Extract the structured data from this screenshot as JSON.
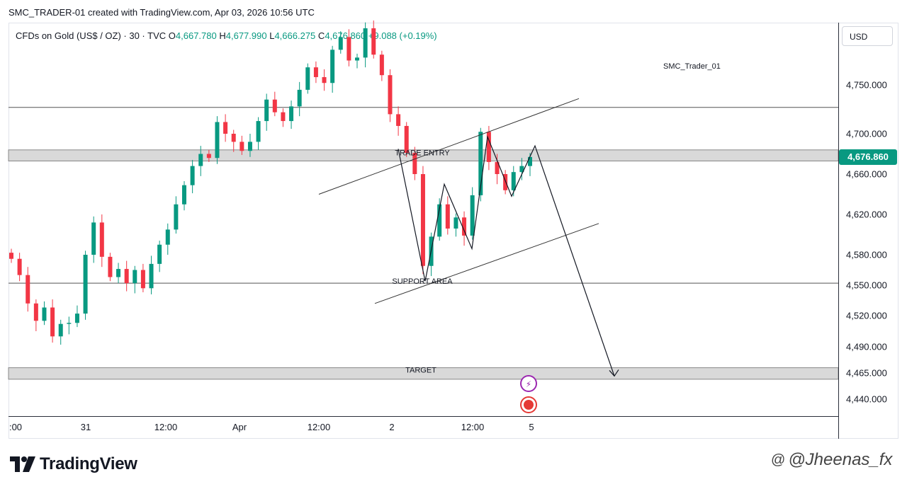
{
  "header": {
    "credit": "SMC_TRADER-01 created with TradingView.com, Apr 03, 2026 10:56 UTC"
  },
  "symbol": {
    "name": "CFDs on Gold (US$ / OZ) · 30 · TVC",
    "open_label": "O",
    "open": "4,667.780",
    "high_label": "H",
    "high": "4,677.990",
    "low_label": "L",
    "low": "4,666.275",
    "close_label": "C",
    "close": "4,676.860",
    "change": "+9.088 (+0.19%)"
  },
  "currency": "USD",
  "author_tag": "SMC_Trader_01",
  "last_price": "4,676.860",
  "brand": {
    "name": "TradingView"
  },
  "watermark": {
    "icon": "threads-icon",
    "handle": "@Jheenas_fx"
  },
  "colors": {
    "up": "#089981",
    "down": "#f23645",
    "zone": "#d9d9d9",
    "accent": "#089981"
  },
  "chart_data": {
    "type": "candlestick",
    "y_tick_labels": [
      "4,750.000",
      "4,700.000",
      "4,660.000",
      "4,620.000",
      "4,580.000",
      "4,550.000",
      "4,520.000",
      "4,490.000",
      "4,465.000",
      "4,440.000"
    ],
    "y_ticks": [
      4750,
      4700,
      4660,
      4620,
      4580,
      4550,
      4520,
      4490,
      4465,
      4440
    ],
    "x_tick_labels": [
      ":00",
      "31",
      "12:00",
      "Apr",
      "12:00",
      "2",
      "12:00",
      "5"
    ],
    "annotations": {
      "trade_entry": "TRADE ENTRY",
      "support_area": "SUPPORT AREA",
      "target": "TARGET"
    },
    "zones": [
      {
        "label": "TRADE ENTRY",
        "from": 4673,
        "to": 4684
      },
      {
        "label": "TARGET",
        "from": 4459,
        "to": 4470
      }
    ],
    "levels": [
      4727,
      4552
    ],
    "channel_upper": [
      [
        4640,
        4736
      ]
    ],
    "channel_lower": [
      [
        4532,
        4611
      ]
    ],
    "zigzag": [
      4685,
      4554,
      4650,
      4586,
      4697,
      4638,
      4688,
      4462
    ],
    "candles_close_path": [
      4576,
      4560,
      4532,
      4515,
      4528,
      4500,
      4512,
      4513,
      4522,
      4580,
      4612,
      4578,
      4558,
      4566,
      4552,
      4565,
      4547,
      4571,
      4590,
      4605,
      4630,
      4649,
      4668,
      4680,
      4676,
      4712,
      4700,
      4692,
      4683,
      4692,
      4713,
      4735,
      4722,
      4713,
      4728,
      4745,
      4768,
      4758,
      4752,
      4786,
      4799,
      4775,
      4778,
      4808,
      4781,
      4760,
      4720,
      4708,
      4681,
      4660,
      4569,
      4598,
      4630,
      4606,
      4617,
      4599,
      4639,
      4702,
      4672,
      4660,
      4644,
      4662,
      4668,
      4677
    ],
    "title": ""
  }
}
